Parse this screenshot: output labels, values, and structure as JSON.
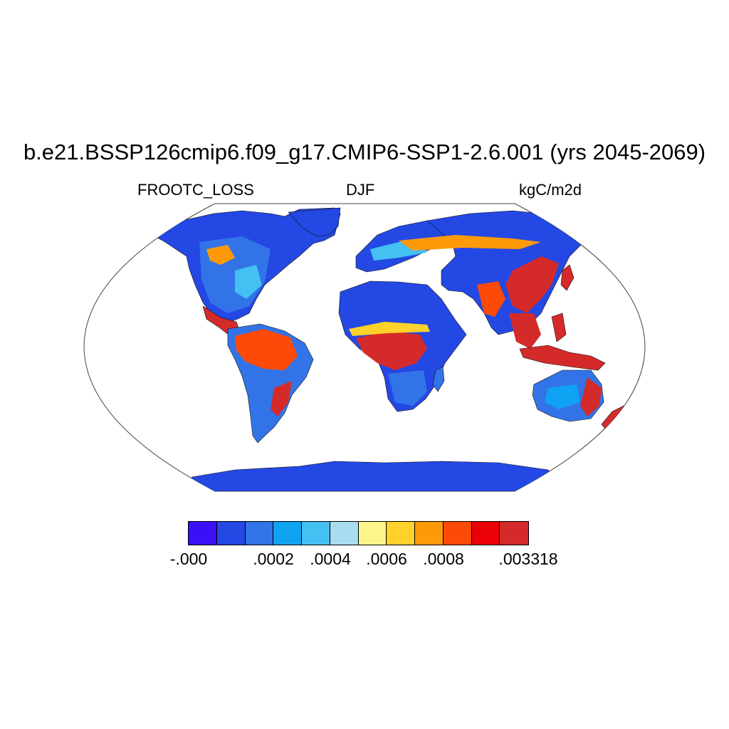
{
  "title": "b.e21.BSSP126cmip6.f09_g17.CMIP6-SSP1-2.6.001 (yrs 2045-2069)",
  "variable": "FROOTC_LOSS",
  "season": "DJF",
  "units": "kgC/m2d",
  "colorbar": {
    "colors": [
      "#3a10f6",
      "#2448e4",
      "#3274e8",
      "#10a2f2",
      "#44c0f2",
      "#a8dcf0",
      "#fef58c",
      "#fed22a",
      "#fe9a0a",
      "#fe4a08",
      "#ec0008",
      "#d42a2a"
    ],
    "labels": [
      "-.000",
      ".0002",
      ".0004",
      ".0006",
      ".0008",
      ".003318"
    ]
  }
}
